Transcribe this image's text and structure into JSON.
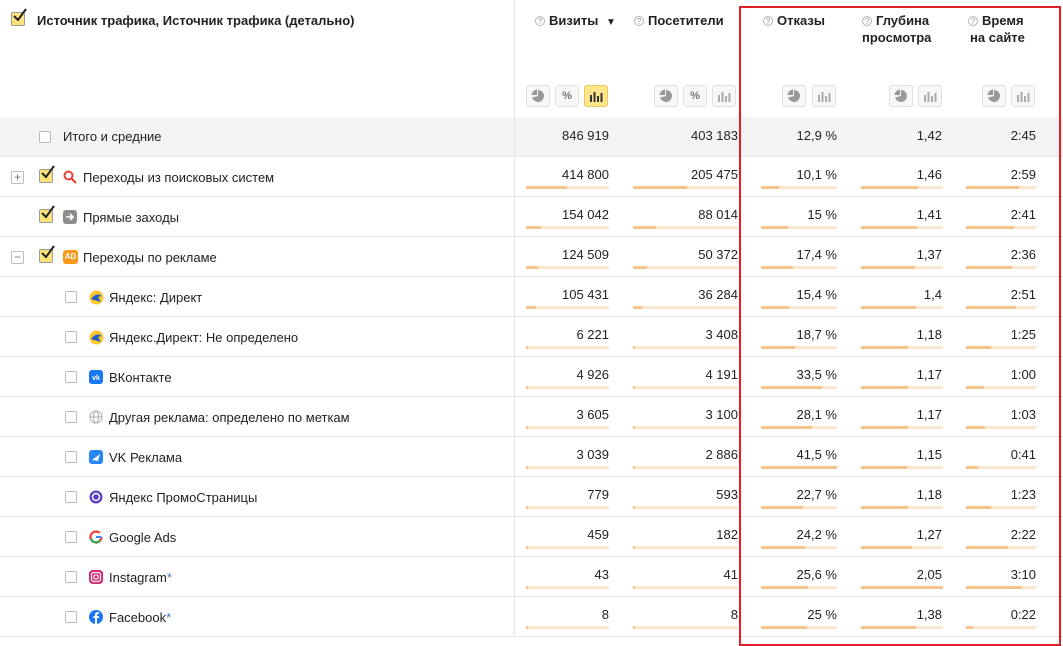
{
  "header": {
    "dimension_label": "Источник трафика, Источник трафика (детально)",
    "columns": [
      {
        "label": "Визиты",
        "sort_indicator": "▼"
      },
      {
        "label": "Посетители"
      },
      {
        "label": "Отказы"
      },
      {
        "label_line1": "Глубина",
        "label_line2": "просмотра"
      },
      {
        "label_line1": "Время",
        "label_line2": "на сайте"
      }
    ],
    "help_glyph": "?",
    "pie_icon": "pie-chart-icon",
    "percent_glyph": "%",
    "bar_icon": "bar-chart-icon"
  },
  "totals": {
    "label": "Итого и средние",
    "visits": "846 919",
    "visitors": "403 183",
    "bounce": "12,9 %",
    "depth": "1,42",
    "time": "2:45"
  },
  "rows": [
    {
      "label": "Переходы из поисковых систем",
      "expander": "+",
      "icon": "search-icon",
      "visits": "414 800",
      "visitors": "205 475",
      "bounce": "10,1 %",
      "depth": "1,46",
      "time": "2:59",
      "visits_share": 0.49,
      "visitors_share": 0.51,
      "bounce_share": 0.24,
      "depth_share": 0.7,
      "time_share": 0.75
    },
    {
      "label": "Прямые заходы",
      "icon": "arrow-right-icon",
      "visits": "154 042",
      "visitors": "88 014",
      "bounce": "15 %",
      "depth": "1,41",
      "time": "2:41",
      "visits_share": 0.18,
      "visitors_share": 0.22,
      "bounce_share": 0.36,
      "depth_share": 0.68,
      "time_share": 0.68
    },
    {
      "label": "Переходы по рекламе",
      "expander": "−",
      "icon": "ad-icon",
      "icon_text": "AD",
      "visits": "124 509",
      "visitors": "50 372",
      "bounce": "17,4 %",
      "depth": "1,37",
      "time": "2:36",
      "visits_share": 0.15,
      "visitors_share": 0.13,
      "bounce_share": 0.42,
      "depth_share": 0.66,
      "time_share": 0.66
    },
    {
      "label": "Яндекс: Директ",
      "icon": "yandex-direct-icon",
      "visits": "105 431",
      "visitors": "36 284",
      "bounce": "15,4 %",
      "depth": "1,4",
      "time": "2:51",
      "visits_share": 0.12,
      "visitors_share": 0.09,
      "bounce_share": 0.37,
      "depth_share": 0.67,
      "time_share": 0.72
    },
    {
      "label": "Яндекс.Директ: Не определено",
      "icon": "yandex-direct-icon",
      "visits": "6 221",
      "visitors": "3 408",
      "bounce": "18,7 %",
      "depth": "1,18",
      "time": "1:25",
      "visits_share": 0.01,
      "visitors_share": 0.01,
      "bounce_share": 0.45,
      "depth_share": 0.57,
      "time_share": 0.36
    },
    {
      "label": "ВКонтакте",
      "icon": "vk-icon",
      "visits": "4 926",
      "visitors": "4 191",
      "bounce": "33,5 %",
      "depth": "1,17",
      "time": "1:00",
      "visits_share": 0.01,
      "visitors_share": 0.01,
      "bounce_share": 0.8,
      "depth_share": 0.57,
      "time_share": 0.25
    },
    {
      "label": "Другая реклама: определено по меткам",
      "icon": "globe-icon",
      "visits": "3 605",
      "visitors": "3 100",
      "bounce": "28,1 %",
      "depth": "1,17",
      "time": "1:03",
      "visits_share": 0.0,
      "visitors_share": 0.01,
      "bounce_share": 0.67,
      "depth_share": 0.57,
      "time_share": 0.27
    },
    {
      "label": "VK Реклама",
      "icon": "vk-ads-icon",
      "visits": "3 039",
      "visitors": "2 886",
      "bounce": "41,5 %",
      "depth": "1,15",
      "time": "0:41",
      "visits_share": 0.0,
      "visitors_share": 0.01,
      "bounce_share": 1.0,
      "depth_share": 0.56,
      "time_share": 0.17
    },
    {
      "label": "Яндекс ПромоСтраницы",
      "icon": "yandex-promo-icon",
      "visits": "779",
      "visitors": "593",
      "bounce": "22,7 %",
      "depth": "1,18",
      "time": "1:23",
      "visits_share": 0.0,
      "visitors_share": 0.0,
      "bounce_share": 0.55,
      "depth_share": 0.57,
      "time_share": 0.35
    },
    {
      "label": "Google Ads",
      "icon": "google-icon",
      "visits": "459",
      "visitors": "182",
      "bounce": "24,2 %",
      "depth": "1,27",
      "time": "2:22",
      "visits_share": 0.0,
      "visitors_share": 0.0,
      "bounce_share": 0.58,
      "depth_share": 0.62,
      "time_share": 0.6
    },
    {
      "label": "Instagram",
      "label_suffix": "*",
      "icon": "instagram-icon",
      "visits": "43",
      "visitors": "41",
      "bounce": "25,6 %",
      "depth": "2,05",
      "time": "3:10",
      "visits_share": 0.0,
      "visitors_share": 0.0,
      "bounce_share": 0.62,
      "depth_share": 1.0,
      "time_share": 0.8
    },
    {
      "label": "Facebook",
      "label_suffix": "*",
      "icon": "facebook-icon",
      "visits": "8",
      "visitors": "8",
      "bounce": "25 %",
      "depth": "1,38",
      "time": "0:22",
      "visits_share": 0.0,
      "visitors_share": 0.0,
      "bounce_share": 0.6,
      "depth_share": 0.67,
      "time_share": 0.1
    }
  ]
}
